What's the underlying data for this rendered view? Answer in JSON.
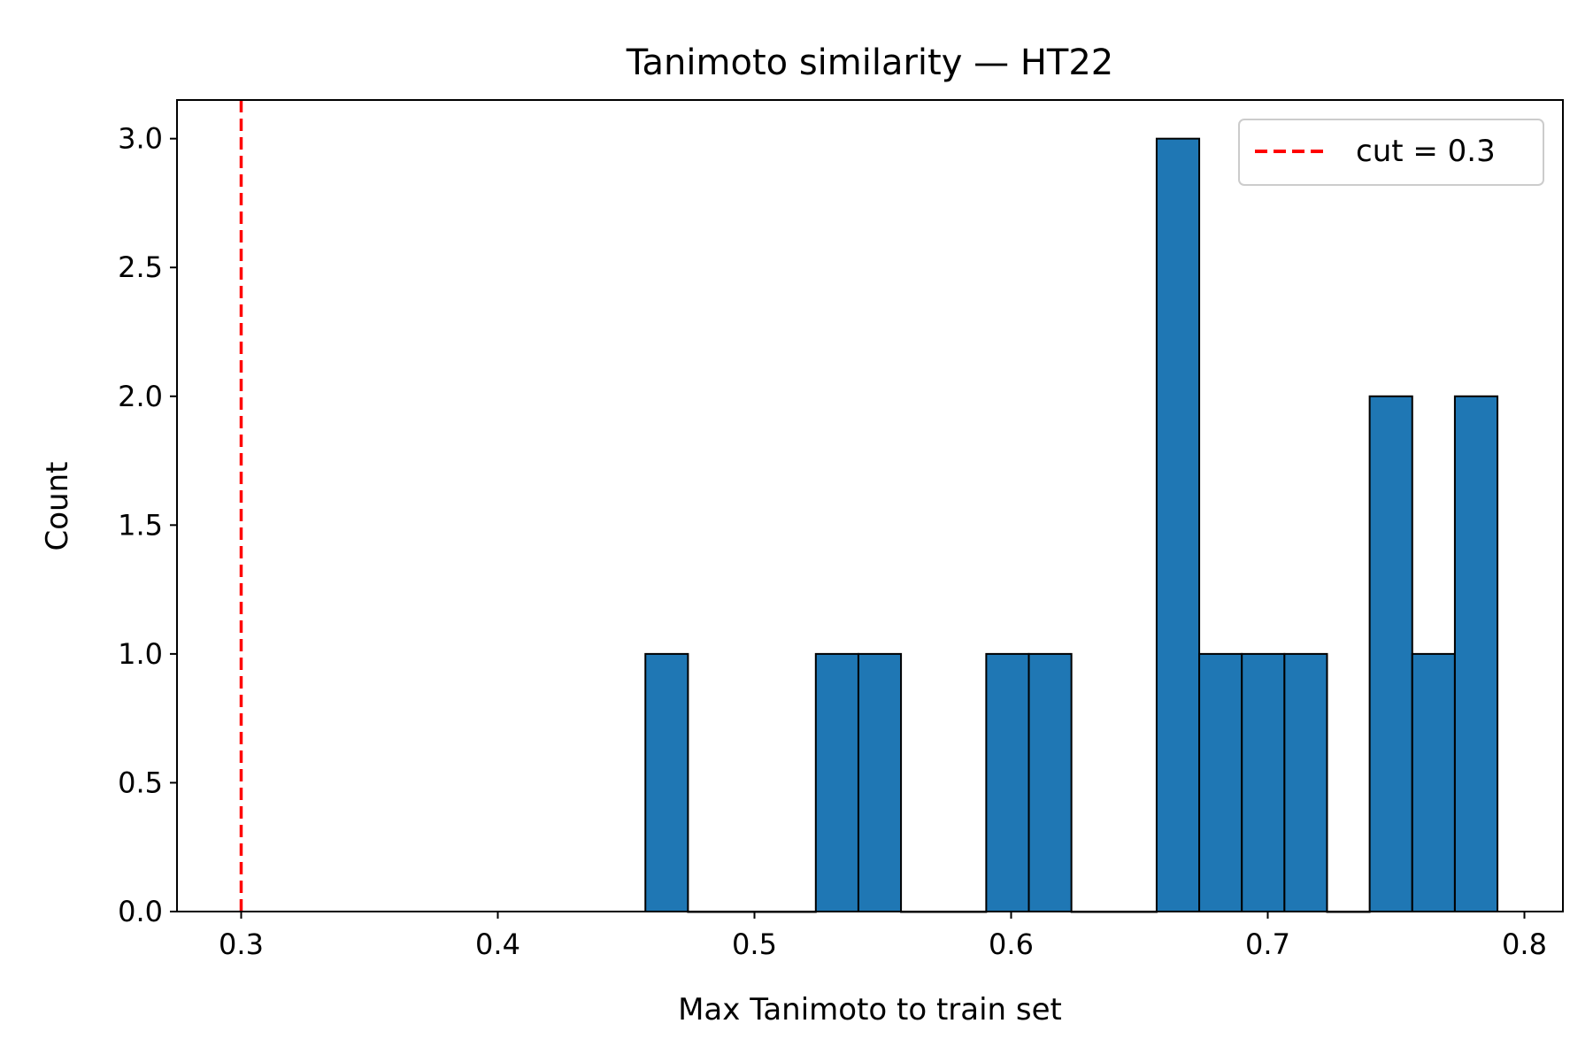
{
  "chart_data": {
    "type": "bar",
    "title": "Tanimoto similarity — HT22",
    "xlabel": "Max Tanimoto to train set",
    "ylabel": "Count",
    "xlim": [
      0.275,
      0.815
    ],
    "ylim": [
      0,
      3.15
    ],
    "xticks": [
      0.3,
      0.4,
      0.5,
      0.6,
      0.7,
      0.8
    ],
    "xtick_labels": [
      "0.3",
      "0.4",
      "0.5",
      "0.6",
      "0.7",
      "0.8"
    ],
    "yticks": [
      0,
      0.5,
      1,
      1.5,
      2,
      2.5,
      3
    ],
    "ytick_labels": [
      "0.0",
      "0.5",
      "1.0",
      "1.5",
      "2.0",
      "2.5",
      "3.0"
    ],
    "bin_start": 0.4575,
    "bin_width": 0.0166,
    "counts": [
      1,
      0,
      0,
      0,
      1,
      1,
      0,
      0,
      1,
      1,
      0,
      0,
      3,
      1,
      1,
      1,
      0,
      2,
      1,
      2
    ],
    "bar_color": "#1f77b4",
    "bar_edge_color": "#000000",
    "grid": false,
    "cut_line": {
      "x": 0.3,
      "color": "#ff0000",
      "style": "dashed",
      "label": "cut = 0.3"
    },
    "legend": {
      "placement": "top-right",
      "entries": [
        "cut = 0.3"
      ]
    }
  }
}
